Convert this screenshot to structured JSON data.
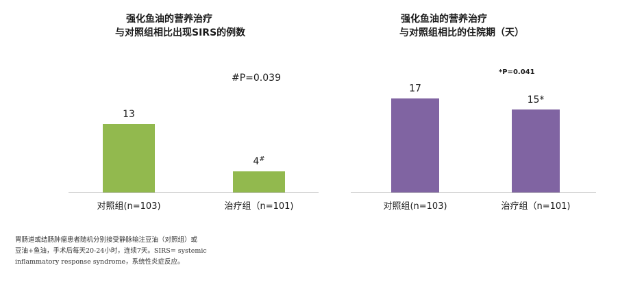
{
  "charts": {
    "left": {
      "title_line1": "强化鱼油的营养治疗",
      "title_line2": "与对照组相比出现SIRS的例数",
      "pvalue": "#P=0.039"
    },
    "right": {
      "title_line1": "强化鱼油的营养治疗",
      "title_line2": "与对照组相比的住院期（天）",
      "pvalue": "*P=0.041"
    }
  },
  "footnote": {
    "line1": "胃肠道或结肠肿瘤患者随机分别接受静脉输注豆油（对照组）或",
    "line2": "豆油+鱼油，手术后每天20-24小时，连续7天。SIRS= systemic",
    "line3": "inflammatory response syndrome，系统性炎症反应。"
  },
  "chart_data": [
    {
      "type": "bar",
      "title": "强化鱼油的营养治疗 与对照组相比出现SIRS的例数",
      "categories": [
        "对照组(n=103)",
        "治疗组（n=101)"
      ],
      "values": [
        13,
        4
      ],
      "data_labels": [
        "13",
        "4#"
      ],
      "annotation": "#P=0.039",
      "color": "#92b94e",
      "ylim": [
        0,
        19.5
      ],
      "grid": false,
      "legend": "none"
    },
    {
      "type": "bar",
      "title": "强化鱼油的营养治疗 与对照组相比的住院期（天）",
      "categories": [
        "对照组(n=103)",
        "治疗组（n=101)"
      ],
      "values": [
        17,
        15
      ],
      "data_labels": [
        "17",
        "15*"
      ],
      "annotation": "*P=0.041",
      "color": "#8064a2",
      "ylim": [
        0,
        19.8
      ],
      "grid": false,
      "legend": "none"
    }
  ]
}
